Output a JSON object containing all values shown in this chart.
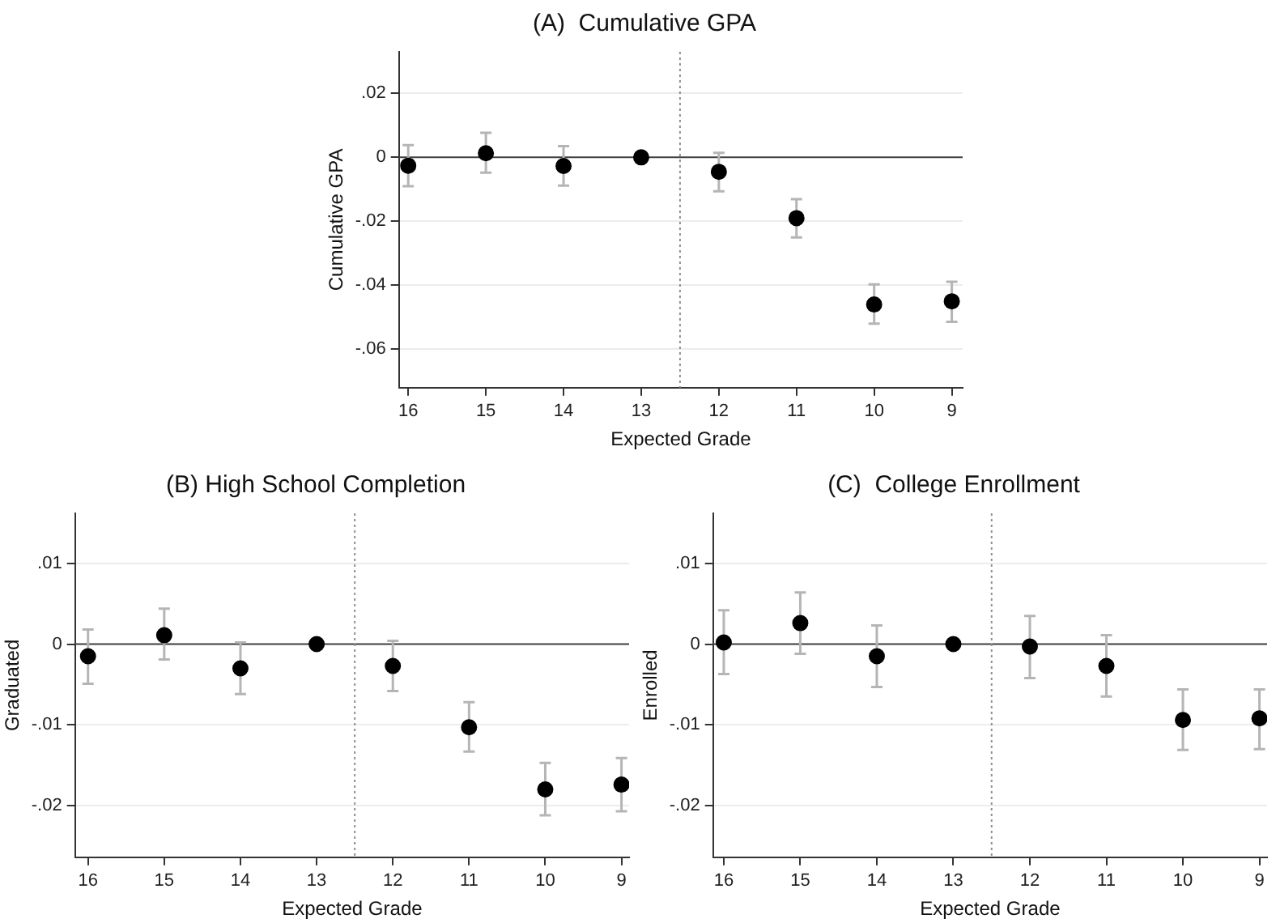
{
  "chart_data": [
    {
      "type": "scatter",
      "title": "(A)  Cumulative GPA",
      "xlabel": "Expected Grade",
      "ylabel": "Cumulative GPA",
      "marker": "circle",
      "grid": "y",
      "x": [
        16,
        15,
        14,
        13,
        12,
        11,
        10,
        9
      ],
      "series": [
        {
          "color": "#000000",
          "values": [
            -0.0026,
            0.0013,
            -0.0027,
            0,
            -0.0045,
            -0.019,
            -0.046,
            -0.045
          ],
          "errors": [
            [
              -0.009,
              0.0038
            ],
            [
              -0.0048,
              0.0077
            ],
            [
              -0.0088,
              0.0035
            ],
            null,
            [
              -0.0106,
              0.0014
            ],
            [
              -0.025,
              -0.0131
            ],
            [
              -0.052,
              -0.0397
            ],
            [
              -0.0514,
              -0.0389
            ]
          ]
        }
      ],
      "xlim": [
        16.12,
        8.86
      ],
      "xticks": [
        16,
        15,
        14,
        13,
        12,
        11,
        10,
        9
      ],
      "ylim": [
        -0.072,
        0.033
      ],
      "yticks": [
        {
          "value": 0.02,
          "label": ".02"
        },
        {
          "value": 0,
          "label": "0"
        },
        {
          "value": -0.02,
          "label": "-.02"
        },
        {
          "value": -0.04,
          "label": "-.04"
        },
        {
          "value": -0.06,
          "label": "-.06"
        }
      ],
      "ref_lines": [
        {
          "axis": "y",
          "value": 0,
          "color": "#404040",
          "line_style": "solid"
        },
        {
          "axis": "x",
          "value": 12.5,
          "color": "#909090",
          "line_style": "dotted"
        }
      ]
    },
    {
      "type": "scatter",
      "title": "(B) High School Completion",
      "xlabel": "Expected Grade",
      "ylabel": "Graduated",
      "marker": "circle",
      "grid": "y",
      "x": [
        16,
        15,
        14,
        13,
        12,
        11,
        10,
        9
      ],
      "series": [
        {
          "color": "#000000",
          "values": [
            -0.0015,
            0.0011,
            -0.003,
            0,
            -0.0027,
            -0.0103,
            -0.018,
            -0.0174
          ],
          "errors": [
            [
              -0.0049,
              0.0018
            ],
            [
              -0.0019,
              0.0044
            ],
            [
              -0.0062,
              0.0002
            ],
            null,
            [
              -0.0058,
              0.0004
            ],
            [
              -0.0133,
              -0.0072
            ],
            [
              -0.0212,
              -0.0147
            ],
            [
              -0.0207,
              -0.0141
            ]
          ]
        }
      ],
      "xlim": [
        16.17,
        8.9
      ],
      "xticks": [
        16,
        15,
        14,
        13,
        12,
        11,
        10,
        9
      ],
      "ylim": [
        -0.0264,
        0.0162
      ],
      "yticks": [
        {
          "value": 0.01,
          "label": ".01"
        },
        {
          "value": 0,
          "label": "0"
        },
        {
          "value": -0.01,
          "label": "-.01"
        },
        {
          "value": -0.02,
          "label": "-.02"
        }
      ],
      "ref_lines": [
        {
          "axis": "y",
          "value": 0,
          "color": "#404040",
          "line_style": "solid"
        },
        {
          "axis": "x",
          "value": 12.5,
          "color": "#909090",
          "line_style": "dotted"
        }
      ]
    },
    {
      "type": "scatter",
      "title": "(C)  College Enrollment",
      "xlabel": "Expected Grade",
      "ylabel": "Enrolled",
      "marker": "circle",
      "grid": "y",
      "x": [
        16,
        15,
        14,
        13,
        12,
        11,
        10,
        9
      ],
      "series": [
        {
          "color": "#000000",
          "values": [
            0.0002,
            0.0026,
            -0.0015,
            0,
            -0.0003,
            -0.0027,
            -0.0094,
            -0.0092
          ],
          "errors": [
            [
              -0.0037,
              0.0042
            ],
            [
              -0.0012,
              0.0064
            ],
            [
              -0.0053,
              0.0023
            ],
            null,
            [
              -0.0042,
              0.0035
            ],
            [
              -0.0065,
              0.0011
            ],
            [
              -0.0131,
              -0.0056
            ],
            [
              -0.013,
              -0.0056
            ]
          ]
        }
      ],
      "xlim": [
        16.14,
        8.9
      ],
      "xticks": [
        16,
        15,
        14,
        13,
        12,
        11,
        10,
        9
      ],
      "ylim": [
        -0.0264,
        0.0162
      ],
      "yticks": [
        {
          "value": 0.01,
          "label": ".01"
        },
        {
          "value": 0,
          "label": "0"
        },
        {
          "value": -0.01,
          "label": "-.01"
        },
        {
          "value": -0.02,
          "label": "-.02"
        }
      ],
      "ref_lines": [
        {
          "axis": "y",
          "value": 0,
          "color": "#404040",
          "line_style": "solid"
        },
        {
          "axis": "x",
          "value": 12.5,
          "color": "#909090",
          "line_style": "dotted"
        }
      ]
    }
  ]
}
